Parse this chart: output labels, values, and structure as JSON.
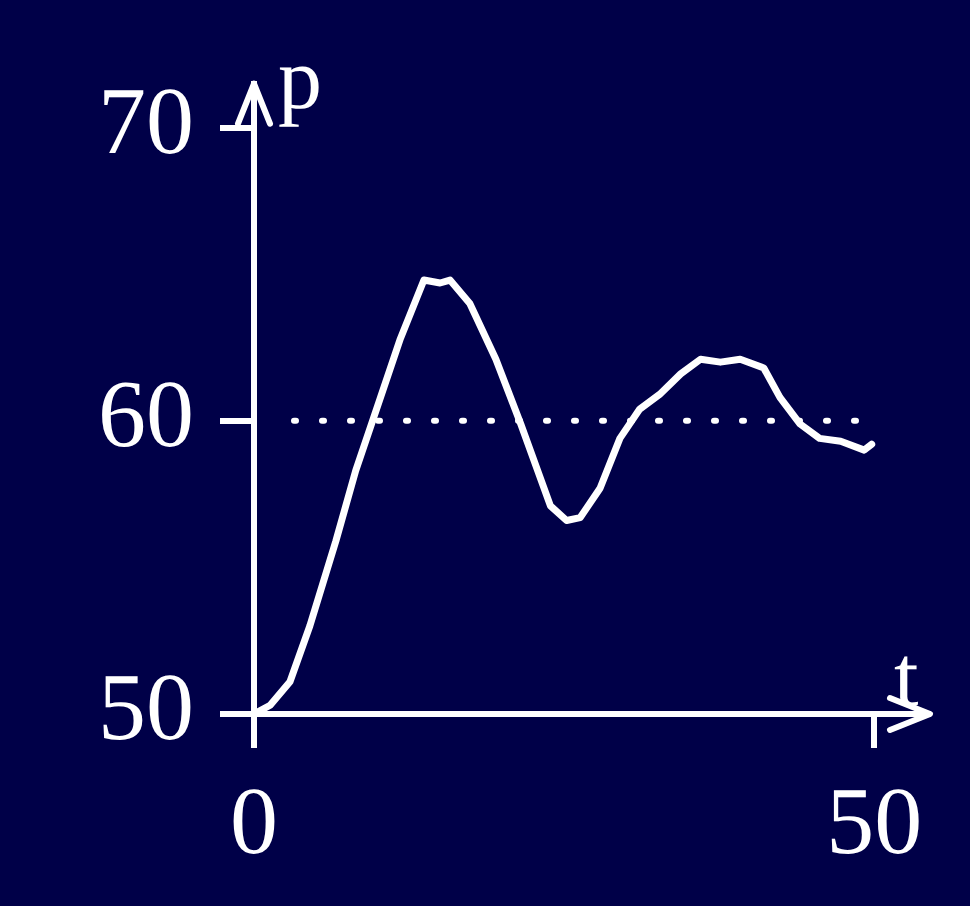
{
  "chart_data": {
    "type": "line",
    "xlabel": "t",
    "ylabel": "p",
    "x": [
      0,
      1.3,
      2.9,
      4.5,
      6.6,
      8.2,
      10.2,
      11.8,
      13.7,
      15,
      15.8,
      17.4,
      19.5,
      21.5,
      23.9,
      25.2,
      26.3,
      27.9,
      29.5,
      31.1,
      32.7,
      34.4,
      36,
      37.6,
      39.2,
      41.1,
      42.4,
      44,
      45.6,
      47.3,
      49.2,
      49.8
    ],
    "series": [
      {
        "color": "#ffffff",
        "values": [
          50,
          50.3,
          51.1,
          53,
          55.9,
          58.3,
          60.8,
          62.8,
          64.8,
          64.7,
          64.8,
          64,
          62.1,
          59.9,
          57.1,
          56.6,
          56.7,
          57.7,
          59.4,
          60.4,
          60.9,
          61.6,
          62.1,
          62,
          62.1,
          61.8,
          60.8,
          59.9,
          59.4,
          59.3,
          59,
          59.2
        ]
      }
    ],
    "xlim": [
      0,
      54.5
    ],
    "xticks": [
      0,
      50
    ],
    "ylim": [
      50,
      71.5
    ],
    "yticks": [
      50,
      60,
      70
    ],
    "ref_lines": [
      {
        "axis": "y",
        "value": 60,
        "color": "#ffffff",
        "line_style": "dotted"
      }
    ],
    "grid": false,
    "legend": false,
    "marker": "none",
    "line_style": "solid"
  }
}
